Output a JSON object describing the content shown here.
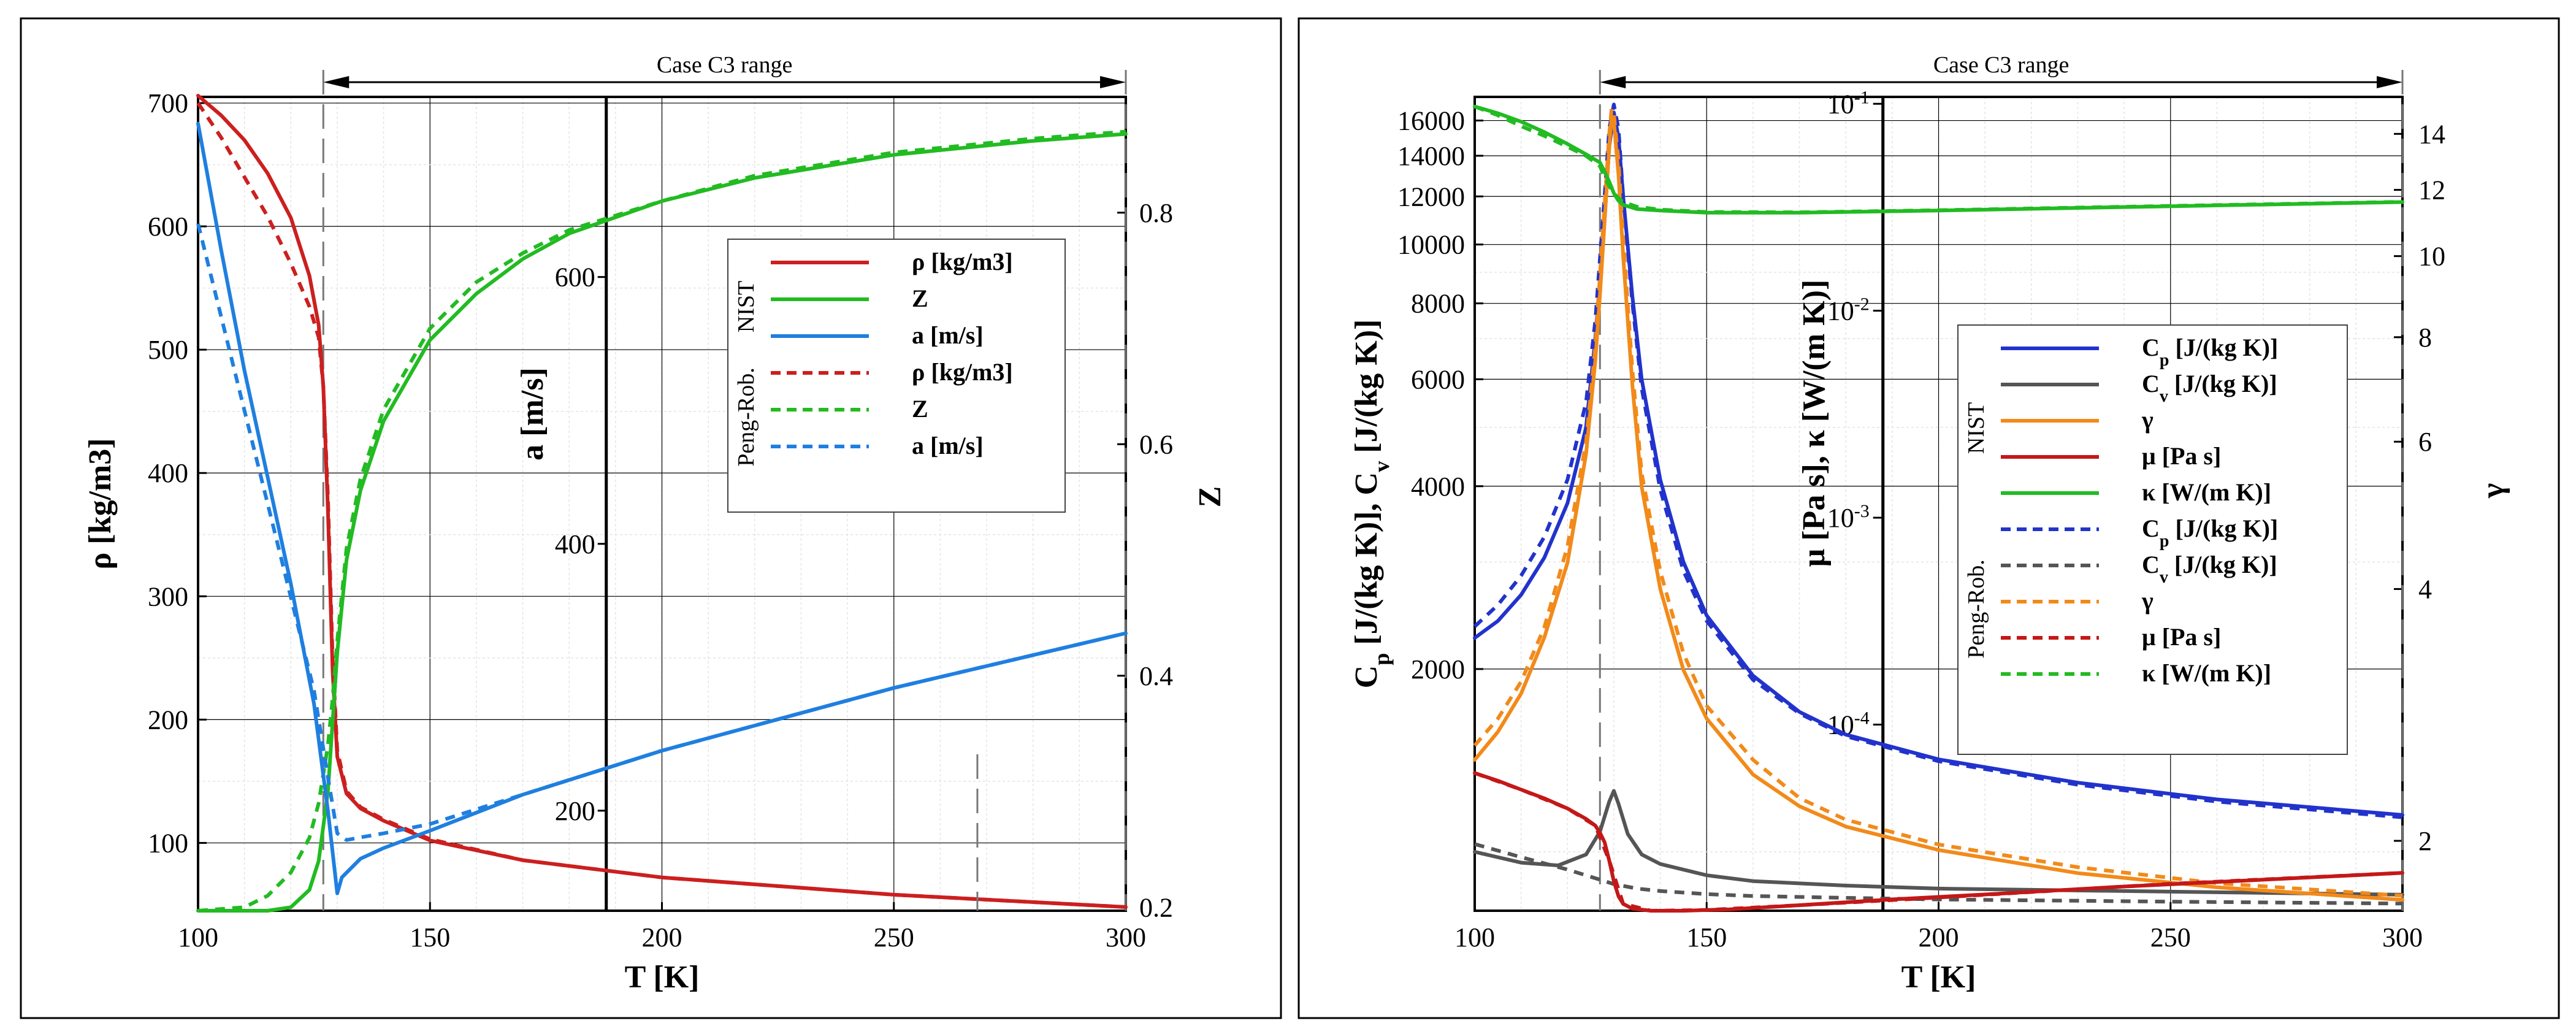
{
  "chart_data": [
    {
      "type": "line",
      "title": "",
      "range_label": "Case C3 range",
      "range_T": [
        127,
        300
      ],
      "xlabel": "T [K]",
      "xlim": [
        100,
        300
      ],
      "xticks": [
        100,
        150,
        200,
        250,
        300
      ],
      "axes": {
        "rho": {
          "label": "ρ [kg/m3]",
          "lim": [
            45,
            705
          ],
          "ticks": [
            100,
            200,
            300,
            400,
            500,
            600,
            700
          ]
        },
        "a": {
          "label": "a [m/s]",
          "lim": [
            125,
            735
          ],
          "ticks": [
            200,
            400,
            600
          ],
          "at_T": 188
        },
        "Z": {
          "label": "Z",
          "lim": [
            0.197,
            0.9
          ],
          "ticks": [
            0.2,
            0.4,
            0.6,
            0.8
          ]
        }
      },
      "legend": {
        "position": "center-right",
        "groups": [
          {
            "name": "NIST",
            "entries": [
              {
                "label": "ρ [kg/m3]",
                "color": "#cc1f1f",
                "dash": false
              },
              {
                "label": "Z",
                "color": "#22bb22",
                "dash": false
              },
              {
                "label": "a [m/s]",
                "color": "#1f7fe0",
                "dash": false
              }
            ]
          },
          {
            "name": "Peng-Rob.",
            "entries": [
              {
                "label": "ρ [kg/m3]",
                "color": "#cc1f1f",
                "dash": true
              },
              {
                "label": "Z",
                "color": "#22bb22",
                "dash": true
              },
              {
                "label": "a [m/s]",
                "color": "#1f7fe0",
                "dash": true
              }
            ]
          }
        ]
      },
      "series": [
        {
          "name": "NIST ρ",
          "axis": "rho",
          "color": "#cc1f1f",
          "dash": false,
          "x": [
            100,
            105,
            110,
            115,
            120,
            124,
            126,
            127,
            128,
            129,
            130,
            132,
            135,
            140,
            150,
            170,
            200,
            250,
            300
          ],
          "y": [
            706,
            690,
            670,
            643,
            607,
            560,
            520,
            470,
            370,
            240,
            170,
            140,
            128,
            118,
            102,
            86,
            72,
            58,
            48
          ]
        },
        {
          "name": "Peng-Rob. ρ",
          "axis": "rho",
          "color": "#cc1f1f",
          "dash": true,
          "x": [
            100,
            105,
            110,
            115,
            120,
            124,
            126,
            127,
            128,
            129,
            130,
            132,
            135,
            140,
            150,
            170,
            200,
            250,
            300
          ],
          "y": [
            700,
            672,
            640,
            608,
            570,
            535,
            510,
            470,
            380,
            250,
            175,
            142,
            129,
            119,
            103,
            86,
            72,
            58,
            48
          ]
        },
        {
          "name": "NIST Z",
          "axis": "Z",
          "color": "#22bb22",
          "dash": false,
          "x": [
            100,
            115,
            120,
            124,
            126,
            128,
            129,
            130,
            132,
            135,
            140,
            150,
            160,
            170,
            180,
            200,
            220,
            250,
            280,
            300
          ],
          "y": [
            0.197,
            0.197,
            0.2,
            0.215,
            0.24,
            0.3,
            0.36,
            0.42,
            0.5,
            0.56,
            0.62,
            0.69,
            0.73,
            0.76,
            0.782,
            0.81,
            0.83,
            0.85,
            0.862,
            0.868
          ]
        },
        {
          "name": "Peng-Rob. Z",
          "axis": "Z",
          "color": "#22bb22",
          "dash": true,
          "x": [
            100,
            110,
            115,
            120,
            124,
            126,
            128,
            129,
            130,
            132,
            135,
            140,
            150,
            160,
            170,
            180,
            200,
            220,
            250,
            280,
            300
          ],
          "y": [
            0.197,
            0.2,
            0.21,
            0.23,
            0.26,
            0.29,
            0.34,
            0.38,
            0.43,
            0.51,
            0.57,
            0.63,
            0.7,
            0.74,
            0.765,
            0.785,
            0.81,
            0.832,
            0.852,
            0.864,
            0.87
          ]
        },
        {
          "name": "NIST a",
          "axis": "a",
          "color": "#1f7fe0",
          "dash": false,
          "x": [
            100,
            105,
            110,
            115,
            120,
            125,
            128,
            130,
            131,
            135,
            140,
            150,
            170,
            200,
            250,
            300
          ],
          "y": [
            715,
            620,
            530,
            450,
            370,
            280,
            200,
            138,
            150,
            164,
            172,
            185,
            212,
            245,
            292,
            333
          ]
        },
        {
          "name": "Peng-Rob. a",
          "axis": "a",
          "color": "#1f7fe0",
          "dash": true,
          "x": [
            100,
            105,
            110,
            115,
            120,
            125,
            128,
            130,
            132,
            135,
            140,
            150,
            170,
            200,
            250,
            300
          ],
          "y": [
            640,
            570,
            500,
            430,
            360,
            290,
            225,
            183,
            178,
            180,
            183,
            190,
            212,
            245,
            292,
            333
          ]
        }
      ]
    },
    {
      "type": "line",
      "title": "",
      "range_label": "Case C3 range",
      "range_T": [
        127,
        300
      ],
      "xlabel": "T [K]",
      "xlim": [
        100,
        300
      ],
      "xticks": [
        100,
        150,
        200,
        250,
        300
      ],
      "axes": {
        "cp": {
          "label": "Cp [J/(kg K)], Cv [J/(kg K)]",
          "scale": "log",
          "lim": [
            800,
            17500
          ],
          "ticks": [
            2000,
            4000,
            6000,
            8000,
            10000,
            12000,
            14000,
            16000
          ]
        },
        "mu": {
          "label": "μ [Pa s], κ [W/(m K)]",
          "scale": "log",
          "lim": [
            1.26e-05,
            0.108
          ],
          "ticks": [
            "10-4",
            "10-3",
            "10-2",
            "10-1"
          ],
          "at_T": 188
        },
        "gamma": {
          "label": "γ",
          "scale": "log",
          "lim": [
            1.65,
            15.5
          ],
          "ticks": [
            2,
            4,
            6,
            8,
            10,
            12,
            14
          ]
        }
      },
      "legend": {
        "position": "center-right",
        "groups": [
          {
            "name": "NIST",
            "entries": [
              {
                "label": "Cp [J/(kg K)]",
                "color": "#2233cc",
                "dash": false
              },
              {
                "label": "Cv [J/(kg K)]",
                "color": "#555555",
                "dash": false
              },
              {
                "label": "γ",
                "color": "#f28a1a",
                "dash": false
              },
              {
                "label": "μ [Pa s]",
                "color": "#c41818",
                "dash": false
              },
              {
                "label": "κ [W/(m K)]",
                "color": "#22bb22",
                "dash": false
              }
            ]
          },
          {
            "name": "Peng-Rob.",
            "entries": [
              {
                "label": "Cp [J/(kg K)]",
                "color": "#2233cc",
                "dash": true
              },
              {
                "label": "Cv [J/(kg K)]",
                "color": "#555555",
                "dash": true
              },
              {
                "label": "γ",
                "color": "#f28a1a",
                "dash": true
              },
              {
                "label": "μ [Pa s]",
                "color": "#c41818",
                "dash": true
              },
              {
                "label": "κ [W/(m K)]",
                "color": "#22bb22",
                "dash": true
              }
            ]
          }
        ]
      },
      "series": [
        {
          "name": "NIST Cp",
          "axis": "cp",
          "color": "#2233cc",
          "dash": false,
          "x": [
            100,
            105,
            110,
            115,
            120,
            124,
            126,
            128,
            129,
            130,
            131,
            132,
            134,
            136,
            140,
            145,
            150,
            160,
            170,
            180,
            200,
            230,
            260,
            300
          ],
          "y": [
            2250,
            2400,
            2650,
            3050,
            3750,
            5000,
            7000,
            11000,
            14500,
            16500,
            15000,
            12000,
            8200,
            6000,
            4100,
            3000,
            2450,
            1950,
            1700,
            1560,
            1420,
            1300,
            1220,
            1150
          ]
        },
        {
          "name": "Peng-Rob. Cp",
          "axis": "cp",
          "color": "#2233cc",
          "dash": true,
          "x": [
            100,
            105,
            110,
            115,
            120,
            124,
            126,
            128,
            129,
            130,
            131,
            132,
            134,
            136,
            140,
            145,
            150,
            160,
            170,
            180,
            200,
            230,
            260,
            300
          ],
          "y": [
            2350,
            2550,
            2850,
            3300,
            4100,
            5500,
            7500,
            12000,
            15500,
            17000,
            15500,
            12000,
            8000,
            5800,
            3950,
            2900,
            2400,
            1920,
            1690,
            1550,
            1410,
            1290,
            1210,
            1140
          ]
        },
        {
          "name": "NIST Cv",
          "axis": "cp",
          "color": "#555555",
          "dash": false,
          "x": [
            100,
            110,
            118,
            124,
            127,
            129,
            130,
            131,
            133,
            136,
            140,
            150,
            160,
            180,
            200,
            250,
            300
          ],
          "y": [
            1000,
            960,
            950,
            990,
            1080,
            1210,
            1260,
            1200,
            1070,
            990,
            955,
            915,
            895,
            880,
            870,
            860,
            850
          ]
        },
        {
          "name": "Peng-Rob. Cv",
          "axis": "cp",
          "color": "#555555",
          "dash": true,
          "x": [
            100,
            110,
            120,
            126,
            130,
            135,
            140,
            150,
            160,
            180,
            200,
            250,
            300
          ],
          "y": [
            1030,
            980,
            935,
            905,
            885,
            870,
            862,
            852,
            846,
            840,
            835,
            828,
            822
          ]
        },
        {
          "name": "NIST γ",
          "axis": "gamma",
          "color": "#f28a1a",
          "dash": false,
          "x": [
            100,
            105,
            110,
            115,
            120,
            124,
            126,
            127,
            128,
            129,
            129.5,
            130,
            131,
            132,
            134,
            136,
            140,
            145,
            150,
            160,
            170,
            180,
            200,
            230,
            260,
            300
          ],
          "y": [
            2.5,
            2.7,
            3.0,
            3.5,
            4.3,
            5.8,
            7.5,
            9.0,
            11,
            13.5,
            14.7,
            14.5,
            12.5,
            10,
            7,
            5.3,
            4.0,
            3.2,
            2.8,
            2.4,
            2.2,
            2.08,
            1.95,
            1.83,
            1.76,
            1.7
          ]
        },
        {
          "name": "Peng-Rob. γ",
          "axis": "gamma",
          "color": "#f28a1a",
          "dash": true,
          "x": [
            100,
            105,
            110,
            115,
            120,
            124,
            126,
            127,
            128,
            129,
            129.5,
            130,
            131,
            132,
            134,
            136,
            140,
            145,
            150,
            160,
            170,
            180,
            200,
            230,
            260,
            300
          ],
          "y": [
            2.6,
            2.8,
            3.1,
            3.6,
            4.5,
            6.0,
            7.8,
            9.5,
            11.5,
            14,
            15,
            14.8,
            13,
            10.5,
            7.3,
            5.5,
            4.2,
            3.35,
            2.9,
            2.5,
            2.25,
            2.12,
            1.98,
            1.86,
            1.78,
            1.72
          ]
        },
        {
          "name": "NIST μ",
          "axis": "mu",
          "color": "#c41818",
          "dash": false,
          "x": [
            100,
            105,
            110,
            115,
            120,
            124,
            126,
            127,
            128,
            129,
            130,
            131,
            132,
            134,
            138,
            145,
            155,
            170,
            190,
            210,
            240,
            270,
            300
          ],
          "y": [
            5.83e-05,
            5.35e-05,
            4.85e-05,
            4.4e-05,
            3.93e-05,
            3.5e-05,
            3.25e-05,
            3e-05,
            2.7e-05,
            2.2e-05,
            1.75e-05,
            1.48e-05,
            1.36e-05,
            1.29e-05,
            1.26e-05,
            1.26e-05,
            1.28e-05,
            1.34e-05,
            1.43e-05,
            1.51e-05,
            1.65e-05,
            1.78e-05,
            1.92e-05
          ]
        },
        {
          "name": "Peng-Rob. μ",
          "axis": "mu",
          "color": "#c41818",
          "dash": true,
          "x": [
            100,
            110,
            120,
            126,
            129,
            132,
            138,
            150,
            170,
            200,
            250,
            300
          ],
          "y": [
            5.83e-05,
            4.85e-05,
            3.93e-05,
            3.25e-05,
            2.2e-05,
            1.36e-05,
            1.26e-05,
            1.27e-05,
            1.34e-05,
            1.46e-05,
            1.7e-05,
            1.92e-05
          ]
        },
        {
          "name": "NIST κ",
          "axis": "mu",
          "color": "#22bb22",
          "dash": false,
          "x": [
            100,
            105,
            110,
            115,
            120,
            124,
            127,
            128,
            129,
            130,
            131,
            132,
            135,
            140,
            150,
            170,
            200,
            230,
            260,
            300
          ],
          "y": [
            0.097,
            0.09,
            0.082,
            0.073,
            0.064,
            0.057,
            0.052,
            0.047,
            0.042,
            0.037,
            0.034,
            0.0325,
            0.031,
            0.0305,
            0.0298,
            0.0298,
            0.0305,
            0.0314,
            0.0323,
            0.0335
          ]
        },
        {
          "name": "Peng-Rob. κ",
          "axis": "mu",
          "color": "#22bb22",
          "dash": true,
          "x": [
            100,
            105,
            110,
            115,
            120,
            124,
            127,
            128,
            129,
            130,
            131,
            132,
            135,
            140,
            150,
            170,
            200,
            230,
            260,
            300
          ],
          "y": [
            0.097,
            0.088,
            0.078,
            0.07,
            0.062,
            0.056,
            0.05,
            0.044,
            0.04,
            0.037,
            0.035,
            0.0335,
            0.0318,
            0.0308,
            0.03,
            0.0299,
            0.0306,
            0.0315,
            0.0324,
            0.0336
          ]
        }
      ]
    }
  ]
}
